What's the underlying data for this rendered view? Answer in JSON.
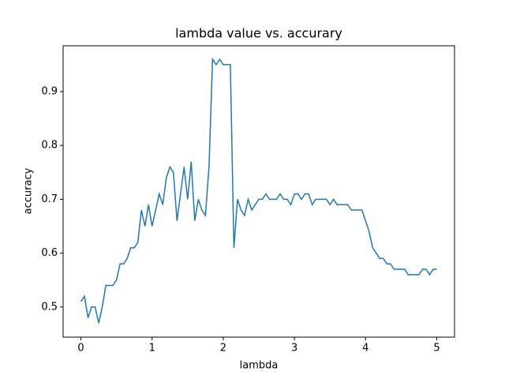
{
  "chart_data": {
    "type": "line",
    "title": "lambda value vs. accurary",
    "x_label": "lambda",
    "y_label": "accuracy",
    "x": [
      0,
      0.05,
      0.1,
      0.15,
      0.2,
      0.25,
      0.3,
      0.35,
      0.4,
      0.45,
      0.5,
      0.55,
      0.6,
      0.65,
      0.7,
      0.75,
      0.8,
      0.85,
      0.9,
      0.95,
      1,
      1.05,
      1.1,
      1.15,
      1.2,
      1.25,
      1.3,
      1.35,
      1.4,
      1.45,
      1.5,
      1.55,
      1.6,
      1.65,
      1.7,
      1.75,
      1.8,
      1.85,
      1.9,
      1.95,
      2,
      2.05,
      2.1,
      2.15,
      2.2,
      2.25,
      2.3,
      2.35,
      2.4,
      2.45,
      2.5,
      2.55,
      2.6,
      2.65,
      2.7,
      2.75,
      2.8,
      2.85,
      2.9,
      2.95,
      3,
      3.05,
      3.1,
      3.15,
      3.2,
      3.25,
      3.3,
      3.35,
      3.4,
      3.45,
      3.5,
      3.55,
      3.6,
      3.65,
      3.7,
      3.75,
      3.8,
      3.85,
      3.9,
      3.95,
      4,
      4.05,
      4.1,
      4.15,
      4.2,
      4.25,
      4.3,
      4.35,
      4.4,
      4.45,
      4.5,
      4.55,
      4.6,
      4.65,
      4.7,
      4.75,
      4.8,
      4.85,
      4.9,
      4.95,
      5
    ],
    "series": [
      {
        "name": "accuracy",
        "color": "#1f77b4",
        "values": [
          0.51,
          0.52,
          0.48,
          0.5,
          0.5,
          0.47,
          0.5,
          0.54,
          0.54,
          0.54,
          0.55,
          0.58,
          0.58,
          0.59,
          0.61,
          0.61,
          0.62,
          0.68,
          0.65,
          0.69,
          0.65,
          0.68,
          0.71,
          0.69,
          0.74,
          0.76,
          0.75,
          0.66,
          0.71,
          0.76,
          0.7,
          0.77,
          0.66,
          0.7,
          0.68,
          0.67,
          0.76,
          0.96,
          0.95,
          0.96,
          0.95,
          0.95,
          0.95,
          0.61,
          0.7,
          0.68,
          0.67,
          0.7,
          0.68,
          0.69,
          0.7,
          0.7,
          0.71,
          0.7,
          0.7,
          0.7,
          0.71,
          0.7,
          0.7,
          0.69,
          0.71,
          0.71,
          0.7,
          0.71,
          0.71,
          0.69,
          0.7,
          0.7,
          0.7,
          0.7,
          0.69,
          0.7,
          0.69,
          0.69,
          0.69,
          0.69,
          0.68,
          0.68,
          0.68,
          0.68,
          0.66,
          0.64,
          0.61,
          0.6,
          0.59,
          0.59,
          0.58,
          0.58,
          0.57,
          0.57,
          0.57,
          0.57,
          0.56,
          0.56,
          0.56,
          0.56,
          0.57,
          0.57,
          0.56,
          0.57,
          0.57
        ]
      }
    ],
    "xlim": [
      -0.25,
      5.25
    ],
    "ylim": [
      0.444,
      0.985
    ],
    "xticks": [
      0,
      1,
      2,
      3,
      4,
      5
    ],
    "yticks": [
      0.5,
      0.6,
      0.7,
      0.8,
      0.9
    ]
  }
}
